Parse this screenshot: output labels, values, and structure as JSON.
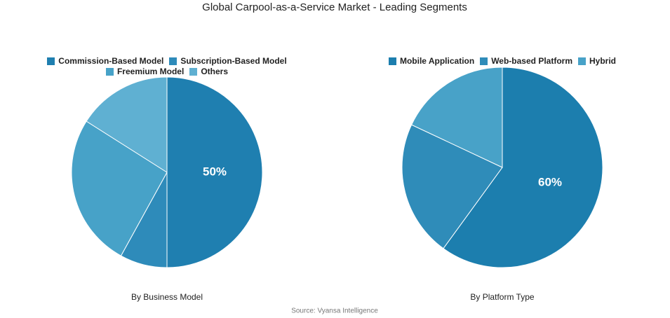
{
  "title": "Global Carpool-as-a-Service Market - Leading Segments",
  "source": "Source: Vyansa Intelligence",
  "chart_data": [
    {
      "type": "pie",
      "title": "By Business Model",
      "categories": [
        "Commission-Based Model",
        "Subscription-Based Model",
        "Freemium Model",
        "Others"
      ],
      "values": [
        50,
        8,
        26,
        16
      ],
      "value_labels": [
        "50%",
        null,
        null,
        null
      ],
      "colors": [
        "#1f7fb0",
        "#2e8bba",
        "#47a2c8",
        "#5fb0d2"
      ]
    },
    {
      "type": "pie",
      "title": "By Platform Type",
      "categories": [
        "Mobile Application",
        "Web-based Platform",
        "Hybrid"
      ],
      "values": [
        60,
        22,
        18
      ],
      "value_labels": [
        "60%",
        null,
        null
      ],
      "colors": [
        "#1c7eae",
        "#2f8cb9",
        "#48a2c8"
      ]
    }
  ]
}
